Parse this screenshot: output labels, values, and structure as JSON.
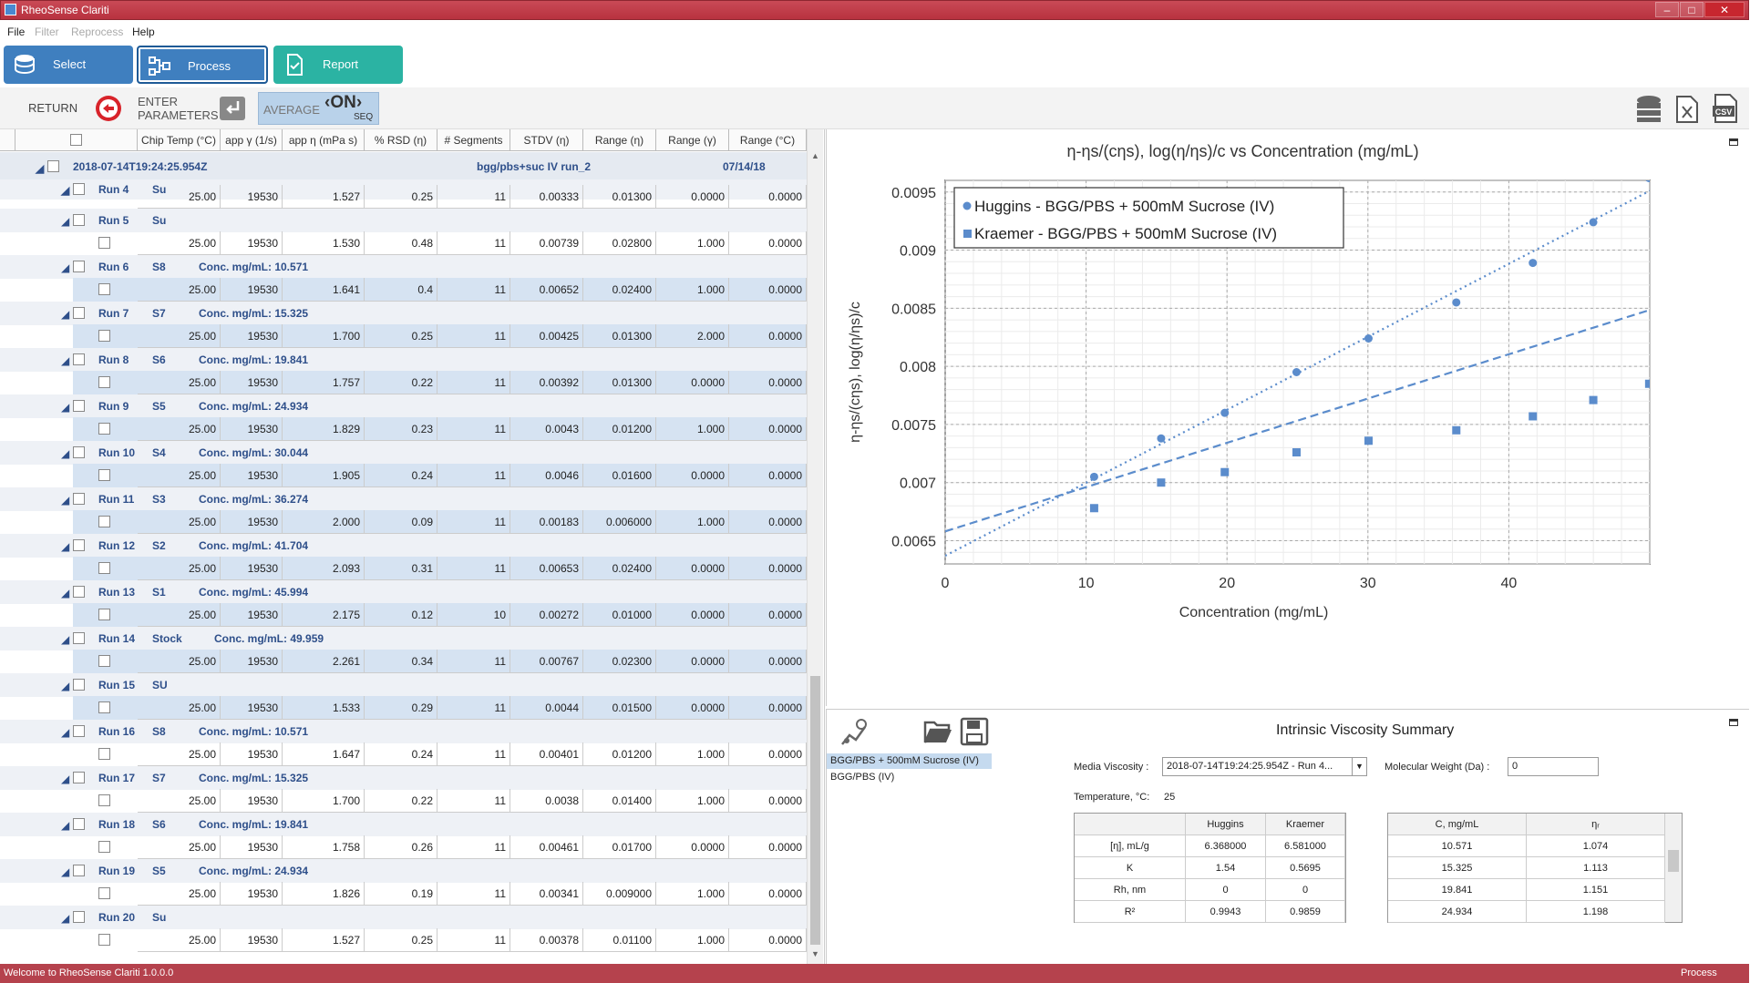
{
  "window": {
    "title": "RheoSense Clariti",
    "faint_title": "",
    "controls": [
      "–",
      "□",
      "✕"
    ]
  },
  "menu": [
    "File",
    "Filter",
    "Reprocess",
    "Help"
  ],
  "nav": {
    "select": "Select",
    "process": "Process",
    "report": "Report"
  },
  "toolbar": {
    "return": "RETURN",
    "enter": "ENTER",
    "parameters": "PARAMETERS",
    "average": "AVERAGE",
    "on": "ON",
    "seq": "SEQ"
  },
  "columns": [
    "Chip Temp (°C)",
    "app γ (1/s)",
    "app η (mPa s)",
    "% RSD (η)",
    "# Segments",
    "STDV (η)",
    "Range (η)",
    "Range (γ)",
    "Range (°C)"
  ],
  "top_group": {
    "timestamp": "2018-07-14T19:24:25.954Z",
    "sample": "bgg/pbs+suc IV run_2",
    "date": "07/14/18"
  },
  "partial_row": [
    "25.00",
    "19530",
    "1.527",
    "0.25",
    "11",
    "0.00333",
    "0.01300",
    "0.0000",
    "0.0000"
  ],
  "runs": [
    {
      "run": "Run 5",
      "s": "Su",
      "conc": "",
      "v": [
        "25.00",
        "19530",
        "1.530",
        "0.48",
        "11",
        "0.00739",
        "0.02800",
        "1.000",
        "0.0000"
      ],
      "hl": false
    },
    {
      "run": "Run 6",
      "s": "S8",
      "conc": "Conc. mg/mL: 10.571",
      "v": [
        "25.00",
        "19530",
        "1.641",
        "0.4",
        "11",
        "0.00652",
        "0.02400",
        "1.000",
        "0.0000"
      ],
      "hl": true
    },
    {
      "run": "Run 7",
      "s": "S7",
      "conc": "Conc. mg/mL: 15.325",
      "v": [
        "25.00",
        "19530",
        "1.700",
        "0.25",
        "11",
        "0.00425",
        "0.01300",
        "2.000",
        "0.0000"
      ],
      "hl": true
    },
    {
      "run": "Run 8",
      "s": "S6",
      "conc": "Conc. mg/mL: 19.841",
      "v": [
        "25.00",
        "19530",
        "1.757",
        "0.22",
        "11",
        "0.00392",
        "0.01300",
        "0.0000",
        "0.0000"
      ],
      "hl": true
    },
    {
      "run": "Run 9",
      "s": "S5",
      "conc": "Conc. mg/mL: 24.934",
      "v": [
        "25.00",
        "19530",
        "1.829",
        "0.23",
        "11",
        "0.0043",
        "0.01200",
        "1.000",
        "0.0000"
      ],
      "hl": true
    },
    {
      "run": "Run 10",
      "s": "S4",
      "conc": "Conc. mg/mL: 30.044",
      "v": [
        "25.00",
        "19530",
        "1.905",
        "0.24",
        "11",
        "0.0046",
        "0.01600",
        "0.0000",
        "0.0000"
      ],
      "hl": true
    },
    {
      "run": "Run 11",
      "s": "S3",
      "conc": "Conc. mg/mL: 36.274",
      "v": [
        "25.00",
        "19530",
        "2.000",
        "0.09",
        "11",
        "0.00183",
        "0.006000",
        "1.000",
        "0.0000"
      ],
      "hl": true
    },
    {
      "run": "Run 12",
      "s": "S2",
      "conc": "Conc. mg/mL: 41.704",
      "v": [
        "25.00",
        "19530",
        "2.093",
        "0.31",
        "11",
        "0.00653",
        "0.02400",
        "0.0000",
        "0.0000"
      ],
      "hl": true
    },
    {
      "run": "Run 13",
      "s": "S1",
      "conc": "Conc. mg/mL: 45.994",
      "v": [
        "25.00",
        "19530",
        "2.175",
        "0.12",
        "10",
        "0.00272",
        "0.01000",
        "0.0000",
        "0.0000"
      ],
      "hl": true
    },
    {
      "run": "Run 14",
      "s": "Stock",
      "conc": "Conc. mg/mL: 49.959",
      "v": [
        "25.00",
        "19530",
        "2.261",
        "0.34",
        "11",
        "0.00767",
        "0.02300",
        "0.0000",
        "0.0000"
      ],
      "hl": true
    },
    {
      "run": "Run 15",
      "s": "SU",
      "conc": "",
      "v": [
        "25.00",
        "19530",
        "1.533",
        "0.29",
        "11",
        "0.0044",
        "0.01500",
        "0.0000",
        "0.0000"
      ],
      "hl": true
    },
    {
      "run": "Run 16",
      "s": "S8",
      "conc": "Conc. mg/mL: 10.571",
      "v": [
        "25.00",
        "19530",
        "1.647",
        "0.24",
        "11",
        "0.00401",
        "0.01200",
        "1.000",
        "0.0000"
      ],
      "hl": false
    },
    {
      "run": "Run 17",
      "s": "S7",
      "conc": "Conc. mg/mL: 15.325",
      "v": [
        "25.00",
        "19530",
        "1.700",
        "0.22",
        "11",
        "0.0038",
        "0.01400",
        "1.000",
        "0.0000"
      ],
      "hl": false
    },
    {
      "run": "Run 18",
      "s": "S6",
      "conc": "Conc. mg/mL: 19.841",
      "v": [
        "25.00",
        "19530",
        "1.758",
        "0.26",
        "11",
        "0.00461",
        "0.01700",
        "0.0000",
        "0.0000"
      ],
      "hl": false
    },
    {
      "run": "Run 19",
      "s": "S5",
      "conc": "Conc. mg/mL: 24.934",
      "v": [
        "25.00",
        "19530",
        "1.826",
        "0.19",
        "11",
        "0.00341",
        "0.009000",
        "1.000",
        "0.0000"
      ],
      "hl": false
    },
    {
      "run": "Run 20",
      "s": "Su",
      "conc": "",
      "v": [
        "25.00",
        "19530",
        "1.527",
        "0.25",
        "11",
        "0.00378",
        "0.01100",
        "1.000",
        "0.0000"
      ],
      "hl": false
    }
  ],
  "run4": {
    "run": "Run 4",
    "s": "Su"
  },
  "chart_data": {
    "type": "scatter",
    "title": "η-ηs/(cηs), log(η/ηs)/c vs Concentration (mg/mL)",
    "xlabel": "Concentration (mg/mL)",
    "ylabel": "η-ηs/(cηs), log(η/ηs)/c",
    "xlim": [
      0,
      50
    ],
    "ylim": [
      0.0063,
      0.0096
    ],
    "xticks": [
      "0",
      "10",
      "20",
      "30",
      "40"
    ],
    "yticks": [
      "0.0065",
      "0.007",
      "0.0075",
      "0.008",
      "0.0085",
      "0.009",
      "0.0095"
    ],
    "legend_position": "top-left",
    "grid": true,
    "series": [
      {
        "name": "Huggins - BGG/PBS + 500mM Sucrose (IV)",
        "marker": "circle",
        "x": [
          10.571,
          15.325,
          19.841,
          24.934,
          30.044,
          36.274,
          41.704,
          45.994,
          49.959
        ],
        "y": [
          0.00705,
          0.00738,
          0.0076,
          0.00795,
          0.00824,
          0.00855,
          0.00889,
          0.00924,
          0.00962
        ],
        "fit": {
          "intercept": 0.00637,
          "slope": 6.28e-05
        }
      },
      {
        "name": "Kraemer - BGG/PBS + 500mM Sucrose (IV)",
        "marker": "square",
        "x": [
          10.571,
          15.325,
          19.841,
          24.934,
          30.044,
          36.274,
          41.704,
          45.994,
          49.959
        ],
        "y": [
          0.00678,
          0.007,
          0.00709,
          0.00726,
          0.00736,
          0.00745,
          0.00757,
          0.00771,
          0.00785
        ],
        "fit": {
          "intercept": 0.00658,
          "slope": 3.81e-05
        }
      }
    ]
  },
  "summary": {
    "title": "Intrinsic Viscosity Summary",
    "samples": [
      "BGG/PBS + 500mM Sucrose (IV)",
      "BGG/PBS (IV)"
    ],
    "media_label": "Media Viscosity :",
    "media_value": "2018-07-14T19:24:25.954Z - Run 4...",
    "mw_label": "Molecular Weight (Da) :",
    "mw_value": "0",
    "temp_label": "Temperature, °C:",
    "temp_value": "25",
    "table1": {
      "headers": [
        "",
        "Huggins",
        "Kraemer"
      ],
      "rows": [
        [
          "[η], mL/g",
          "6.368000",
          "6.581000"
        ],
        [
          "K",
          "1.54",
          "0.5695"
        ],
        [
          "Rh, nm",
          "0",
          "0"
        ],
        [
          "R²",
          "0.9943",
          "0.9859"
        ]
      ]
    },
    "table2": {
      "headers": [
        "C, mg/mL",
        "ηᵣ"
      ],
      "rows": [
        [
          "10.571",
          "1.074"
        ],
        [
          "15.325",
          "1.113"
        ],
        [
          "19.841",
          "1.151"
        ],
        [
          "24.934",
          "1.198"
        ]
      ]
    }
  },
  "status": {
    "left": "Welcome to RheoSense Clariti 1.0.0.0",
    "right": "Process"
  },
  "colors": {
    "accent": "#2e78b8",
    "teal": "#2bb3a3",
    "blue_btn": "#3f7fbf",
    "highlight": "#d6e3f2",
    "marker": "#5b8ccc"
  }
}
